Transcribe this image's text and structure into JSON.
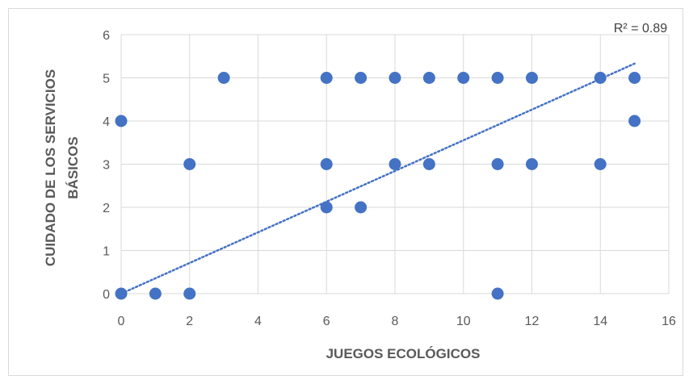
{
  "chart_data": {
    "type": "scatter",
    "title": "",
    "xlabel": "JUEGOS ECOLÓGICOS",
    "ylabel_lines": [
      "CUIDADO DE LOS SERVICIOS",
      "BÁSICOS"
    ],
    "xlim": [
      0,
      16
    ],
    "ylim": [
      0,
      6
    ],
    "xticks": [
      0,
      2,
      4,
      6,
      8,
      10,
      12,
      14,
      16
    ],
    "yticks": [
      0,
      1,
      2,
      3,
      4,
      5,
      6
    ],
    "xtick_labels": [
      "0",
      "2",
      "4",
      "6",
      "8",
      "10",
      "12",
      "14",
      "16"
    ],
    "ytick_labels": [
      "0",
      "1",
      "2",
      "3",
      "4",
      "5",
      "6"
    ],
    "grid": true,
    "point_color": "#4472c4",
    "trendline": {
      "type": "linear",
      "style": "dotted",
      "color": "#4472c4",
      "x_range": [
        0,
        15
      ],
      "y_range": [
        0,
        5.33
      ],
      "r2_label": "R² = 0.89"
    },
    "points": [
      {
        "x": 0,
        "y": 0
      },
      {
        "x": 0,
        "y": 4
      },
      {
        "x": 1,
        "y": 0
      },
      {
        "x": 2,
        "y": 0
      },
      {
        "x": 2,
        "y": 3
      },
      {
        "x": 3,
        "y": 5
      },
      {
        "x": 6,
        "y": 2
      },
      {
        "x": 6,
        "y": 3
      },
      {
        "x": 6,
        "y": 5
      },
      {
        "x": 7,
        "y": 2
      },
      {
        "x": 7,
        "y": 5
      },
      {
        "x": 8,
        "y": 3
      },
      {
        "x": 8,
        "y": 5
      },
      {
        "x": 9,
        "y": 3
      },
      {
        "x": 9,
        "y": 5
      },
      {
        "x": 10,
        "y": 5
      },
      {
        "x": 11,
        "y": 0
      },
      {
        "x": 11,
        "y": 3
      },
      {
        "x": 11,
        "y": 5
      },
      {
        "x": 12,
        "y": 3
      },
      {
        "x": 12,
        "y": 5
      },
      {
        "x": 14,
        "y": 3
      },
      {
        "x": 14,
        "y": 5
      },
      {
        "x": 15,
        "y": 4
      },
      {
        "x": 15,
        "y": 5
      }
    ]
  }
}
